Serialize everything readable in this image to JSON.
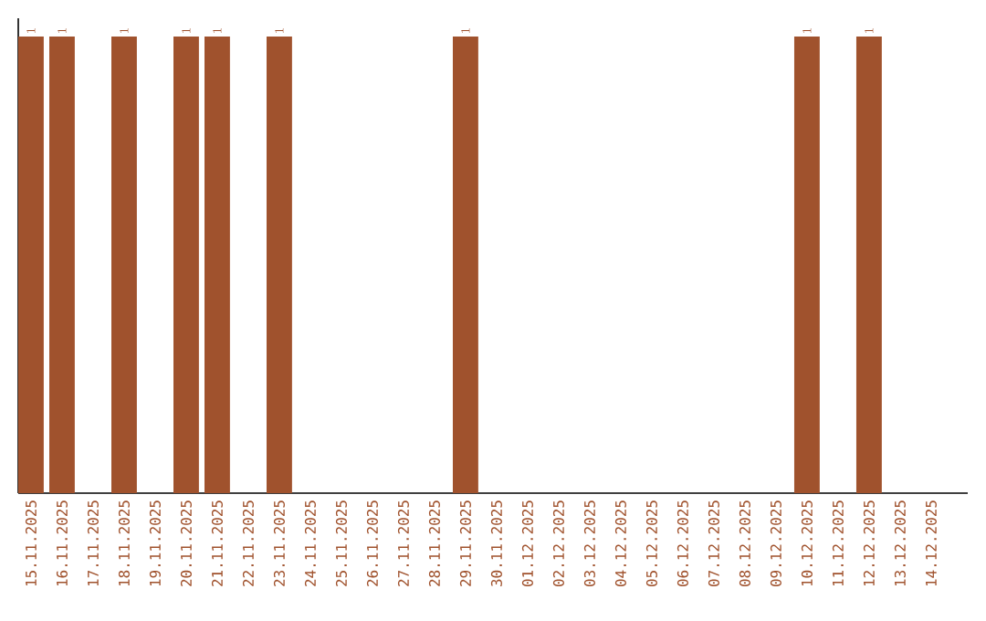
{
  "chart_data": {
    "type": "bar",
    "categories": [
      "15.11.2025",
      "16.11.2025",
      "17.11.2025",
      "18.11.2025",
      "19.11.2025",
      "20.11.2025",
      "21.11.2025",
      "22.11.2025",
      "23.11.2025",
      "24.11.2025",
      "25.11.2025",
      "26.11.2025",
      "27.11.2025",
      "28.11.2025",
      "29.11.2025",
      "30.11.2025",
      "01.12.2025",
      "02.12.2025",
      "03.12.2025",
      "04.12.2025",
      "05.12.2025",
      "06.12.2025",
      "07.12.2025",
      "08.12.2025",
      "09.12.2025",
      "10.12.2025",
      "11.12.2025",
      "12.12.2025",
      "13.12.2025",
      "14.12.2025"
    ],
    "values": [
      1,
      1,
      null,
      1,
      null,
      1,
      1,
      null,
      1,
      null,
      null,
      null,
      null,
      null,
      1,
      null,
      null,
      null,
      null,
      null,
      null,
      null,
      null,
      null,
      null,
      1,
      null,
      1,
      null,
      null
    ],
    "color": "#a0522d",
    "ylim": [
      0,
      1.04
    ],
    "data_labels": true
  }
}
